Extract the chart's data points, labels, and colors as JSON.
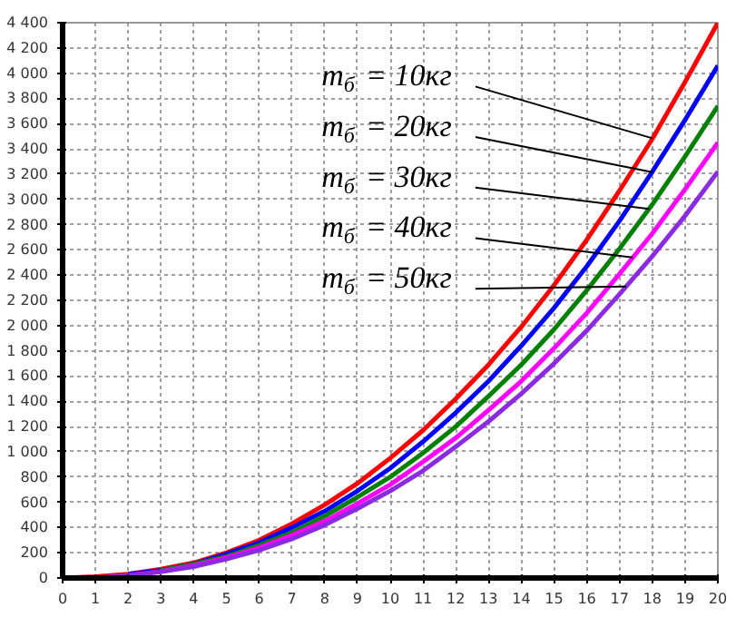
{
  "chart_data": {
    "type": "line",
    "x": [
      0,
      1,
      2,
      3,
      4,
      5,
      6,
      7,
      8,
      9,
      10,
      11,
      12,
      13,
      14,
      15,
      16,
      17,
      18,
      19,
      20
    ],
    "series": [
      {
        "color": "#ff0000",
        "values": [
          0,
          10,
          30,
          70,
          120,
          200,
          300,
          430,
          580,
          750,
          950,
          1170,
          1420,
          1690,
          1990,
          2320,
          2680,
          3070,
          3480,
          3930,
          4400
        ]
      },
      {
        "color": "#0000ff",
        "values": [
          null,
          null,
          30,
          60,
          110,
          190,
          280,
          400,
          530,
          690,
          870,
          1080,
          1310,
          1560,
          1840,
          2140,
          2470,
          2830,
          3220,
          3630,
          4060
        ]
      },
      {
        "color": "#008000",
        "values": [
          null,
          null,
          null,
          60,
          110,
          170,
          260,
          360,
          490,
          640,
          800,
          990,
          1200,
          1440,
          1690,
          1970,
          2280,
          2610,
          2960,
          3340,
          3740
        ]
      },
      {
        "color": "#ff00ff",
        "values": [
          null,
          null,
          20,
          50,
          100,
          160,
          240,
          340,
          450,
          590,
          740,
          920,
          1110,
          1330,
          1560,
          1820,
          2100,
          2410,
          2730,
          3080,
          3450
        ]
      },
      {
        "color": "#8a2be2",
        "values": [
          0,
          0,
          20,
          50,
          90,
          150,
          220,
          310,
          420,
          550,
          690,
          850,
          1040,
          1240,
          1460,
          1700,
          1960,
          2250,
          2550,
          2870,
          3220
        ]
      }
    ],
    "annotations": [
      {
        "text": "m$_{б}$ = 10кг",
        "x": 18,
        "y": 3484
      },
      {
        "text": "m$_{б}$ = 20кг",
        "x": 18,
        "y": 3216
      },
      {
        "text": "m$_{б}$ = 30кг",
        "x": 17.9,
        "y": 2925
      },
      {
        "text": "m$_{б}$ = 40кг",
        "x": 17.4,
        "y": 2540
      },
      {
        "text": "m$_{б}$ = 50кг",
        "x": 17.2,
        "y": 2310
      }
    ],
    "xlim": [
      0,
      20
    ],
    "ylim": [
      0,
      4400
    ],
    "xticks": [
      0,
      1,
      2,
      3,
      4,
      5,
      6,
      7,
      8,
      9,
      10,
      11,
      12,
      13,
      14,
      15,
      16,
      17,
      18,
      19,
      20
    ],
    "yticks": [
      0,
      200,
      400,
      600,
      800,
      {
        "value": 1000,
        "label": "1 000"
      },
      {
        "value": 1200,
        "label": "1 200"
      },
      {
        "value": 1400,
        "label": "1 400"
      },
      {
        "value": 1600,
        "label": "1 600"
      },
      {
        "value": 1800,
        "label": "1 800"
      },
      {
        "value": 2000,
        "label": "2 000"
      },
      {
        "value": 2200,
        "label": "2 200"
      },
      {
        "value": 2400,
        "label": "2 400"
      },
      {
        "value": 2600,
        "label": "2 600"
      },
      {
        "value": 2800,
        "label": "2 800"
      },
      {
        "value": 3000,
        "label": "3 000"
      },
      {
        "value": 3200,
        "label": "3 200"
      },
      {
        "value": 3400,
        "label": "3 400"
      },
      {
        "value": 3600,
        "label": "3 600"
      },
      {
        "value": 3800,
        "label": "3 800"
      },
      {
        "value": 4000,
        "label": "4 000"
      },
      {
        "value": 4200,
        "label": "4 200"
      },
      {
        "value": 4400,
        "label": "4 400"
      }
    ],
    "grid": true,
    "marker": "none",
    "line_style": "solid"
  }
}
